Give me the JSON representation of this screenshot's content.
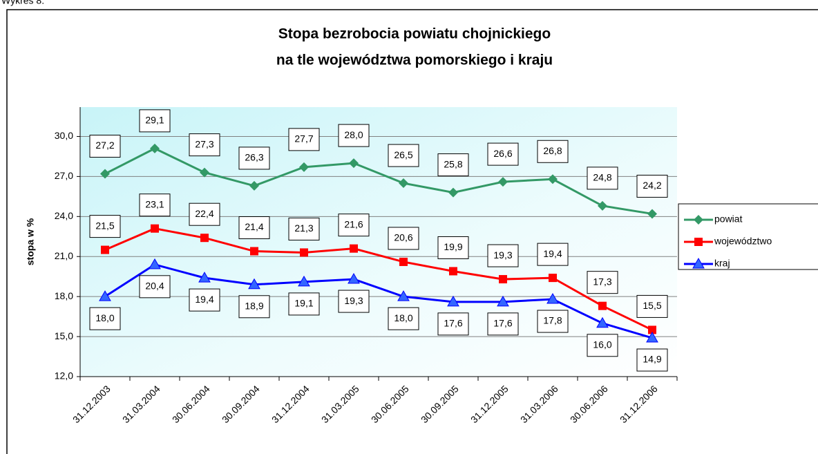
{
  "caption": "Wykres 8.",
  "chart_data": {
    "type": "line",
    "title": [
      "Stopa bezrobocia powiatu chojnickiego",
      "na tle województwa pomorskiego i kraju"
    ],
    "y_label": "stopa w %",
    "categories": [
      "31.12.2003",
      "31.03.2004",
      "30.06.2004",
      "30.09.2004",
      "31.12.2004",
      "31.03.2005",
      "30.06.2005",
      "30.09.2005",
      "31.12.2005",
      "31.03.2006",
      "30.06.2006",
      "31.12.2006"
    ],
    "series": [
      {
        "name": "powiat",
        "color": "#339966",
        "marker": "diamond",
        "label_side": "above",
        "values": [
          27.2,
          29.1,
          27.3,
          26.3,
          27.7,
          28.0,
          26.5,
          25.8,
          26.6,
          26.8,
          24.8,
          24.2
        ],
        "value_labels": [
          "27,2",
          "29,1",
          "27,3",
          "26,3",
          "27,7",
          "28,0",
          "26,5",
          "25,8",
          "26,6",
          "26,8",
          "24,8",
          "24,2"
        ]
      },
      {
        "name": "województwo",
        "color": "#ff0000",
        "marker": "square",
        "label_side": "above",
        "values": [
          21.5,
          23.1,
          22.4,
          21.4,
          21.3,
          21.6,
          20.6,
          19.9,
          19.3,
          19.4,
          17.3,
          15.5
        ],
        "value_labels": [
          "21,5",
          "23,1",
          "22,4",
          "21,4",
          "21,3",
          "21,6",
          "20,6",
          "19,9",
          "19,3",
          "19,4",
          "17,3",
          "15,5"
        ]
      },
      {
        "name": "kraj",
        "color": "#0000ff",
        "marker": "triangle",
        "label_side": "below",
        "values": [
          18.0,
          20.4,
          19.4,
          18.9,
          19.1,
          19.3,
          18.0,
          17.6,
          17.6,
          17.8,
          16.0,
          14.9
        ],
        "value_labels": [
          "18,0",
          "20,4",
          "19,4",
          "18,9",
          "19,1",
          "19,3",
          "18,0",
          "17,6",
          "17,6",
          "17,8",
          "16,0",
          "14,9"
        ]
      }
    ],
    "ylim": [
      12,
      32.2
    ],
    "yticks": [
      {
        "value": 12,
        "label": "12,0"
      },
      {
        "value": 15,
        "label": "15,0"
      },
      {
        "value": 18,
        "label": "18,0"
      },
      {
        "value": 21,
        "label": "21,0"
      },
      {
        "value": 24,
        "label": "24,0"
      },
      {
        "value": 27,
        "label": "27,0"
      },
      {
        "value": 30,
        "label": "30,0"
      }
    ],
    "grid": true,
    "legend": "right"
  }
}
